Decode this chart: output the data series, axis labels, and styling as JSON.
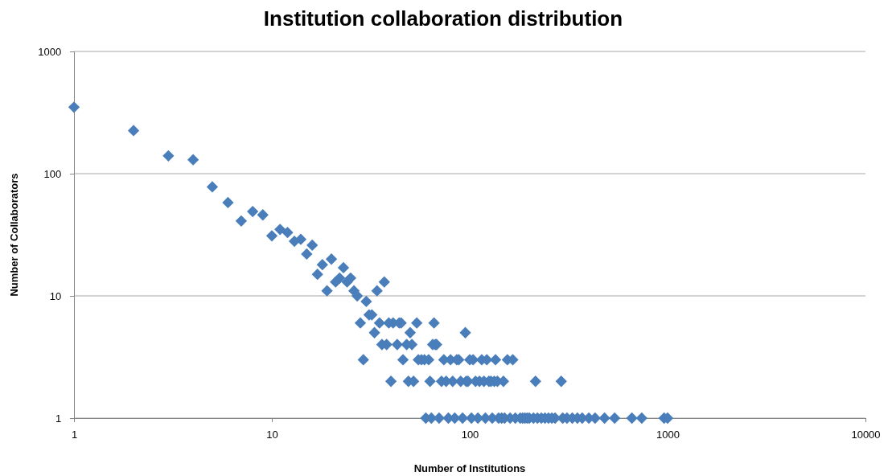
{
  "chart_data": {
    "type": "scatter",
    "title": "Institution collaboration distribution",
    "xlabel": "Number of Institutions",
    "ylabel": "Number of Collaborators",
    "log": "xy",
    "grid": "y",
    "marker": "diamond",
    "xlim": [
      1,
      10000
    ],
    "ylim": [
      1,
      1000
    ],
    "xticks": [
      1,
      10,
      100,
      1000,
      10000
    ],
    "yticks": [
      1,
      10,
      100,
      1000
    ],
    "series": [
      {
        "color": "#4a7ebb",
        "x": [
          1,
          2,
          3,
          4,
          5,
          6,
          7,
          8,
          9,
          10,
          11,
          12,
          13,
          14,
          15,
          16,
          17,
          18,
          19,
          20,
          21,
          22,
          23,
          24,
          25,
          26,
          27,
          28,
          29,
          30,
          31,
          32,
          33,
          34,
          35,
          36,
          37,
          38,
          39,
          40,
          41,
          43,
          44,
          45,
          46,
          48,
          49,
          50,
          51,
          52,
          54,
          55,
          57,
          59,
          60,
          62,
          63,
          64,
          65,
          66,
          67,
          68,
          70,
          72,
          74,
          76,
          78,
          80,
          82,
          84,
          86,
          88,
          90,
          92,
          95,
          96,
          98,
          100,
          102,
          104,
          107,
          110,
          112,
          115,
          118,
          120,
          122,
          125,
          128,
          130,
          133,
          135,
          138,
          140,
          145,
          148,
          150,
          155,
          160,
          165,
          170,
          180,
          185,
          190,
          195,
          200,
          210,
          215,
          220,
          230,
          240,
          250,
          260,
          270,
          290,
          295,
          310,
          330,
          350,
          370,
          400,
          430,
          480,
          540,
          660,
          740,
          960,
          1000
        ],
        "values": [
          350,
          225,
          140,
          130,
          78,
          58,
          41,
          49,
          46,
          31,
          35,
          33,
          28,
          29,
          22,
          26,
          15,
          18,
          11,
          20,
          13,
          14,
          17,
          13,
          14,
          11,
          10,
          6,
          3,
          9,
          7,
          7,
          5,
          11,
          6,
          4,
          13,
          4,
          6,
          2,
          6,
          4,
          6,
          6,
          3,
          4,
          2,
          5,
          4,
          2,
          6,
          3,
          3,
          3,
          1,
          3,
          2,
          1,
          4,
          6,
          4,
          4,
          1,
          2,
          3,
          2,
          1,
          3,
          2,
          1,
          3,
          3,
          2,
          1,
          5,
          2,
          2,
          3,
          1,
          3,
          2,
          1,
          2,
          3,
          2,
          1,
          3,
          2,
          2,
          1,
          2,
          3,
          2,
          1,
          1,
          2,
          1,
          3,
          1,
          3,
          1,
          1,
          1,
          1,
          1,
          1,
          1,
          2,
          1,
          1,
          1,
          1,
          1,
          1,
          2,
          1,
          1,
          1,
          1,
          1,
          1,
          1,
          1,
          1,
          1,
          1,
          1,
          1
        ]
      }
    ]
  }
}
